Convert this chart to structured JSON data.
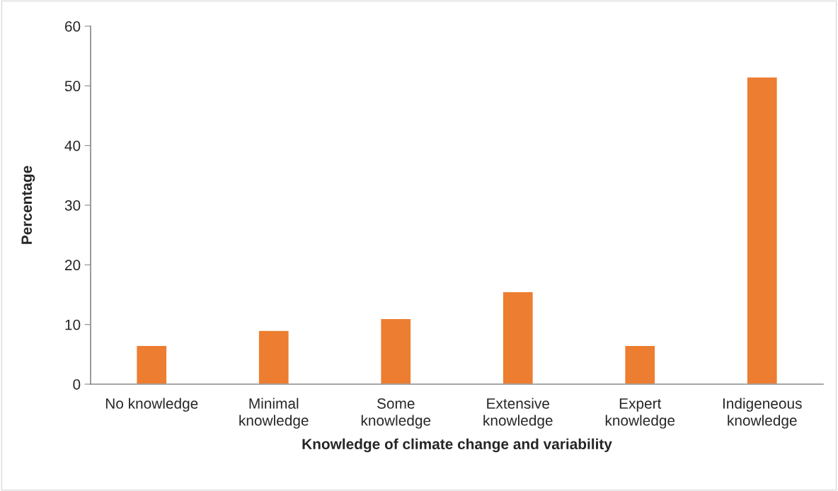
{
  "chart_data": {
    "type": "bar",
    "xlabel": "Knowledge of climate change and variability",
    "ylabel": "Percentage",
    "categories": [
      "No knowledge",
      "Minimal\nknowledge",
      "Some\nknowledge",
      "Extensive\nknowledge",
      "Expert\nknowledge",
      "Indigeneous\nknowledge"
    ],
    "values": [
      6.5,
      9.0,
      11.0,
      15.5,
      6.5,
      51.5
    ],
    "color": "#ed7d31",
    "ylim": [
      0,
      60
    ],
    "yticks": [
      0,
      10,
      20,
      30,
      40,
      50,
      60
    ],
    "grid": false,
    "legend": false
  }
}
